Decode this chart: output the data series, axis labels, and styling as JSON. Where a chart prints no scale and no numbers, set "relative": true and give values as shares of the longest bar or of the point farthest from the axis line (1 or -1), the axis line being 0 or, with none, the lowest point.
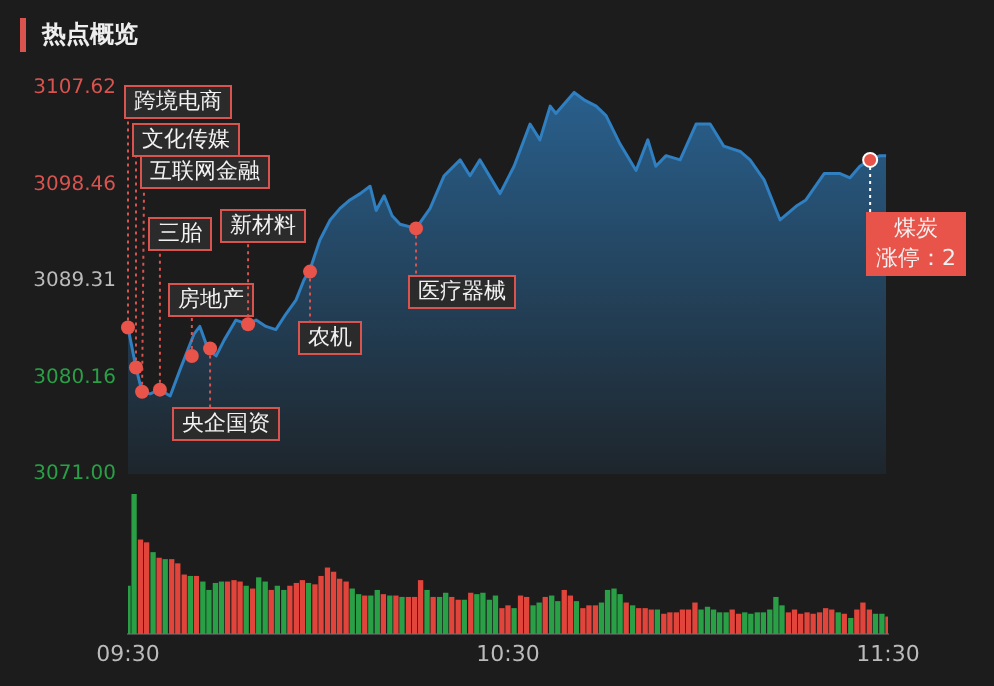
{
  "chart_data": [
    {
      "type": "area",
      "title": "热点概览",
      "x": [
        9.5,
        9.521,
        9.537,
        9.558,
        9.584,
        9.611,
        9.637,
        9.674,
        9.689,
        9.711,
        9.732,
        9.753,
        9.784,
        9.816,
        9.837,
        9.863,
        9.889,
        9.916,
        9.942,
        9.963,
        9.979,
        10.005,
        10.032,
        10.058,
        10.084,
        10.111,
        10.137,
        10.153,
        10.174,
        10.195,
        10.216,
        10.258,
        10.295,
        10.332,
        10.374,
        10.4,
        10.426,
        10.479,
        10.516,
        10.558,
        10.584,
        10.611,
        10.626,
        10.674,
        10.7,
        10.732,
        10.758,
        10.795,
        10.837,
        10.868,
        10.889,
        10.916,
        10.953,
        10.995,
        11.032,
        11.068,
        11.111,
        11.137,
        11.174,
        11.216,
        11.258,
        11.284,
        11.332,
        11.374,
        11.4,
        11.426,
        11.453,
        11.479,
        11.495
      ],
      "series": [
        {
          "color": "#2f7fc1",
          "values": [
            3084.9,
            3081.1,
            3078.8,
            3078.6,
            3079.0,
            3078.4,
            3080.9,
            3084.3,
            3085.0,
            3082.8,
            3082.2,
            3083.7,
            3085.6,
            3085.2,
            3085.6,
            3085.0,
            3084.7,
            3086.2,
            3087.5,
            3089.4,
            3090.4,
            3093.2,
            3095.1,
            3096.2,
            3097.0,
            3097.6,
            3098.3,
            3096.0,
            3097.4,
            3095.5,
            3094.7,
            3094.3,
            3096.2,
            3099.3,
            3100.8,
            3099.3,
            3100.8,
            3097.6,
            3100.2,
            3104.2,
            3102.7,
            3105.9,
            3105.2,
            3107.2,
            3106.5,
            3105.9,
            3105.0,
            3102.3,
            3099.8,
            3102.7,
            3100.2,
            3101.2,
            3100.8,
            3104.2,
            3104.2,
            3102.1,
            3101.6,
            3100.8,
            3098.9,
            3095.1,
            3096.4,
            3097.0,
            3099.5,
            3099.5,
            3099.1,
            3100.2,
            3100.8,
            3101.2,
            3101.2
          ]
        }
      ],
      "xlim": [
        9.5,
        11.5
      ],
      "tick_labels": "y",
      "ylim": [
        3071,
        3107.62
      ],
      "yticks": [
        {
          "value": 3071,
          "label": "3071.00"
        },
        3080.16,
        3089.31,
        3098.46,
        3107.62
      ],
      "annotations": [
        {
          "text": "跨境电商",
          "x": 9.5,
          "y": 3084.9
        },
        {
          "text": "文化传媒",
          "x": 9.521,
          "y": 3081.1
        },
        {
          "text": "互联网金融",
          "x": 9.537,
          "y": 3078.8
        },
        {
          "text": "三胎",
          "x": 9.584,
          "y": 3079.0
        },
        {
          "text": "房地产",
          "x": 9.668,
          "y": 3082.2
        },
        {
          "text": "央企国资",
          "x": 9.716,
          "y": 3082.9
        },
        {
          "text": "新材料",
          "x": 9.816,
          "y": 3085.2
        },
        {
          "text": "农机",
          "x": 9.979,
          "y": 3090.2
        },
        {
          "text": "医疗器械",
          "x": 10.258,
          "y": 3094.3
        },
        {
          "text": "煤炭涨停：2",
          "x": 11.453,
          "y": 3100.8
        }
      ]
    },
    {
      "type": "bar",
      "relative": true,
      "tick_labels": "x",
      "xlim": [
        9.5,
        11.5
      ],
      "xticks": [
        {
          "value": 9.5,
          "label": "09:30"
        },
        {
          "value": 10.5,
          "label": "10:30"
        },
        {
          "value": 11.5,
          "label": "11:30"
        }
      ],
      "x": [
        9.5,
        9.516,
        9.533,
        9.549,
        9.566,
        9.582,
        9.598,
        9.615,
        9.631,
        9.648,
        9.664,
        9.68,
        9.697,
        9.713,
        9.73,
        9.746,
        9.762,
        9.779,
        9.795,
        9.811,
        9.828,
        9.844,
        9.861,
        9.877,
        9.893,
        9.91,
        9.926,
        9.943,
        9.959,
        9.975,
        9.992,
        10.008,
        10.025,
        10.041,
        10.057,
        10.074,
        10.09,
        10.107,
        10.123,
        10.139,
        10.156,
        10.172,
        10.189,
        10.205,
        10.221,
        10.238,
        10.254,
        10.27,
        10.287,
        10.303,
        10.32,
        10.336,
        10.352,
        10.369,
        10.385,
        10.402,
        10.418,
        10.434,
        10.451,
        10.467,
        10.484,
        10.5,
        10.516,
        10.533,
        10.549,
        10.566,
        10.582,
        10.598,
        10.615,
        10.631,
        10.648,
        10.664,
        10.68,
        10.697,
        10.713,
        10.73,
        10.746,
        10.762,
        10.779,
        10.795,
        10.811,
        10.828,
        10.844,
        10.861,
        10.877,
        10.893,
        10.91,
        10.926,
        10.943,
        10.959,
        10.975,
        10.992,
        11.008,
        11.025,
        11.041,
        11.057,
        11.074,
        11.09,
        11.107,
        11.123,
        11.139,
        11.156,
        11.172,
        11.189,
        11.205,
        11.221,
        11.238,
        11.254,
        11.27,
        11.287,
        11.303,
        11.32,
        11.336,
        11.352,
        11.369,
        11.385,
        11.402,
        11.418,
        11.434,
        11.451,
        11.467,
        11.484,
        11.5
      ],
      "values": [
        0.34,
        1,
        0.67,
        0.65,
        0.58,
        0.54,
        0.53,
        0.53,
        0.5,
        0.42,
        0.41,
        0.41,
        0.37,
        0.31,
        0.36,
        0.37,
        0.37,
        0.38,
        0.37,
        0.34,
        0.32,
        0.4,
        0.37,
        0.31,
        0.34,
        0.31,
        0.34,
        0.36,
        0.38,
        0.36,
        0.35,
        0.41,
        0.47,
        0.44,
        0.39,
        0.37,
        0.32,
        0.28,
        0.27,
        0.27,
        0.31,
        0.28,
        0.27,
        0.27,
        0.26,
        0.26,
        0.26,
        0.38,
        0.31,
        0.26,
        0.26,
        0.29,
        0.26,
        0.24,
        0.24,
        0.29,
        0.28,
        0.29,
        0.24,
        0.27,
        0.18,
        0.2,
        0.18,
        0.27,
        0.26,
        0.2,
        0.22,
        0.26,
        0.27,
        0.23,
        0.31,
        0.27,
        0.23,
        0.18,
        0.2,
        0.2,
        0.22,
        0.31,
        0.32,
        0.28,
        0.22,
        0.2,
        0.18,
        0.18,
        0.17,
        0.17,
        0.14,
        0.15,
        0.15,
        0.17,
        0.17,
        0.22,
        0.17,
        0.19,
        0.17,
        0.15,
        0.15,
        0.17,
        0.14,
        0.15,
        0.14,
        0.15,
        0.15,
        0.17,
        0.26,
        0.2,
        0.15,
        0.17,
        0.14,
        0.15,
        0.14,
        0.15,
        0.18,
        0.17,
        0.15,
        0.14,
        0.11,
        0.17,
        0.22,
        0.17,
        0.14,
        0.14,
        0.12
      ],
      "colors": [
        "#2aa046",
        "#2aa046",
        "#e0443a",
        "#e0443a",
        "#2aa046",
        "#e0443a",
        "#2aa046",
        "#e0443a",
        "#e0443a",
        "#e0443a",
        "#2aa046",
        "#e0443a",
        "#2aa046",
        "#2aa046",
        "#2aa046",
        "#2aa046",
        "#e0443a",
        "#e0443a",
        "#e0443a",
        "#2aa046",
        "#e0443a",
        "#2aa046",
        "#2aa046",
        "#e0443a",
        "#2aa046",
        "#2aa046",
        "#e0443a",
        "#e0443a",
        "#e0443a",
        "#2aa046",
        "#e0443a",
        "#e0443a",
        "#e0443a",
        "#e0443a",
        "#e0443a",
        "#e0443a",
        "#2aa046",
        "#2aa046",
        "#e0443a",
        "#2aa046",
        "#2aa046",
        "#e0443a",
        "#2aa046",
        "#e0443a",
        "#2aa046",
        "#e0443a",
        "#e0443a",
        "#e0443a",
        "#2aa046",
        "#e0443a",
        "#2aa046",
        "#2aa046",
        "#e0443a",
        "#e0443a",
        "#2aa046",
        "#e0443a",
        "#2aa046",
        "#2aa046",
        "#2aa046",
        "#2aa046",
        "#e0443a",
        "#e0443a",
        "#2aa046",
        "#e0443a",
        "#e0443a",
        "#2aa046",
        "#2aa046",
        "#e0443a",
        "#2aa046",
        "#2aa046",
        "#e0443a",
        "#e0443a",
        "#2aa046",
        "#e0443a",
        "#e0443a",
        "#e0443a",
        "#2aa046",
        "#2aa046",
        "#2aa046",
        "#2aa046",
        "#e0443a",
        "#2aa046",
        "#e0443a",
        "#e0443a",
        "#e0443a",
        "#2aa046",
        "#e0443a",
        "#e0443a",
        "#e0443a",
        "#e0443a",
        "#e0443a",
        "#e0443a",
        "#2aa046",
        "#2aa046",
        "#2aa046",
        "#2aa046",
        "#2aa046",
        "#e0443a",
        "#e0443a",
        "#2aa046",
        "#2aa046",
        "#2aa046",
        "#2aa046",
        "#2aa046",
        "#2aa046",
        "#2aa046",
        "#e0443a",
        "#e0443a",
        "#e0443a",
        "#e0443a",
        "#e0443a",
        "#e0443a",
        "#e0443a",
        "#e0443a",
        "#2aa046",
        "#e0443a",
        "#2aa046",
        "#e0443a",
        "#e0443a",
        "#e0443a",
        "#2aa046",
        "#2aa046",
        "#e0443a"
      ]
    }
  ]
}
